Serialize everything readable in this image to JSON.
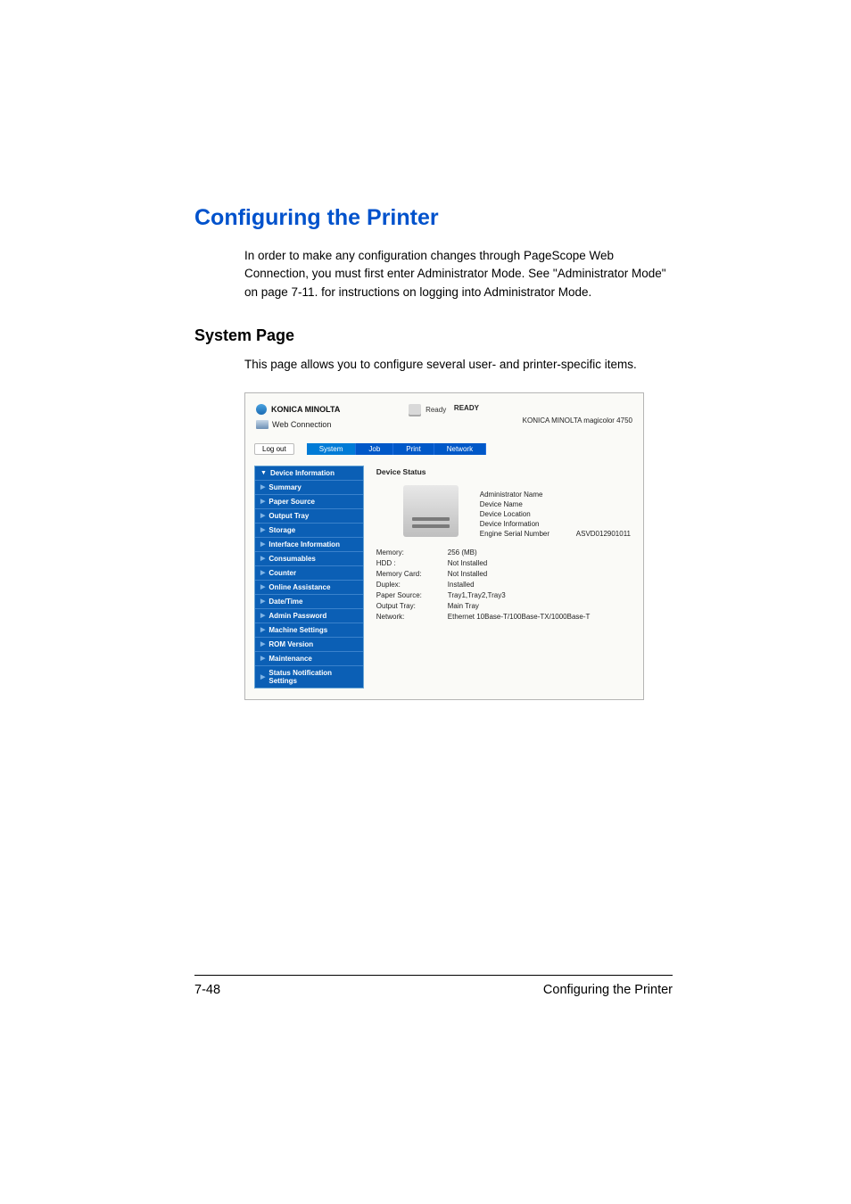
{
  "doc": {
    "title": "Configuring the Printer",
    "intro": "In order to make any configuration changes through PageScope Web Connection, you must first enter Administrator Mode. See \"Administrator Mode\" on page 7-11. for instructions on logging into Administrator Mode.",
    "subhead": "System Page",
    "subtext": "This page allows you to configure several user- and printer-specific items."
  },
  "footer": {
    "left": "7-48",
    "right": "Configuring the Printer"
  },
  "ui": {
    "brand": "KONICA MINOLTA",
    "product_line": "Web Connection",
    "ready_word": "Ready",
    "ready_caps": "READY",
    "model": "KONICA MINOLTA magicolor 4750",
    "logout": "Log out",
    "tabs": {
      "system": "System",
      "job": "Job",
      "print": "Print",
      "network": "Network"
    },
    "nav": {
      "device_info": "Device Information",
      "summary": "Summary",
      "paper_source": "Paper Source",
      "output_tray": "Output Tray",
      "storage": "Storage",
      "interface_info": "Interface Information",
      "consumables": "Consumables",
      "counter": "Counter",
      "online_assist": "Online Assistance",
      "date_time": "Date/Time",
      "admin_pw": "Admin Password",
      "machine_settings": "Machine Settings",
      "rom_version": "ROM Version",
      "maintenance": "Maintenance",
      "status_notif": "Status Notification Settings"
    },
    "content_title": "Device Status",
    "info": {
      "admin_name_label": "Administrator Name",
      "device_name_label": "Device Name",
      "device_location_label": "Device Location",
      "device_info_label": "Device Information",
      "serial_label": "Engine Serial Number",
      "serial_value": "ASVD012901011"
    },
    "spec": {
      "memory_label": "Memory:",
      "memory_value": "256 (MB)",
      "hdd_label": "HDD :",
      "hdd_value": "Not Installed",
      "card_label": "Memory Card:",
      "card_value": "Not Installed",
      "duplex_label": "Duplex:",
      "duplex_value": "Installed",
      "paper_label": "Paper Source:",
      "paper_value": "Tray1,Tray2,Tray3",
      "out_label": "Output Tray:",
      "out_value": "Main Tray",
      "net_label": "Network:",
      "net_value": "Ethernet 10Base-T/100Base-TX/1000Base-T"
    }
  },
  "colors": {
    "title": "#0052cc",
    "tab_bg": "#0058c8",
    "tab_active": "#007bd6",
    "nav_bg": "#0b5fb5"
  }
}
